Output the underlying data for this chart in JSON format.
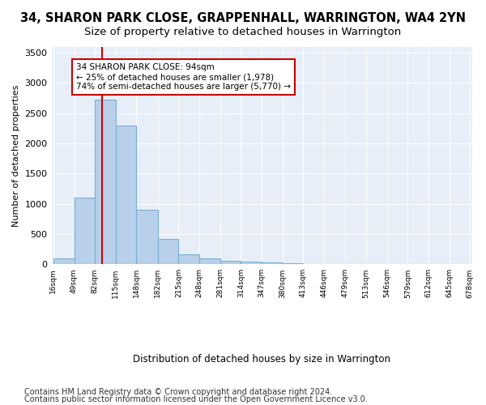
{
  "title_line1": "34, SHARON PARK CLOSE, GRAPPENHALL, WARRINGTON, WA4 2YN",
  "title_line2": "Size of property relative to detached houses in Warrington",
  "xlabel": "Distribution of detached houses by size in Warrington",
  "ylabel": "Number of detached properties",
  "bar_color": "#b8d0ea",
  "bar_edge_color": "#7aafd4",
  "bg_color": "#e8eef8",
  "annotation_line1": "34 SHARON PARK CLOSE: 94sqm",
  "annotation_line2": "← 25% of detached houses are smaller (1,978)",
  "annotation_line3": "74% of semi-detached houses are larger (5,770) →",
  "vline_color": "#cc0000",
  "annotation_box_color": "#ffffff",
  "annotation_box_edge": "#cc0000",
  "bin_edges": [
    16,
    49,
    82,
    115,
    148,
    182,
    215,
    248,
    281,
    314,
    347,
    380,
    413,
    446,
    479,
    513,
    546,
    579,
    612,
    645,
    678
  ],
  "counts": [
    100,
    1100,
    2720,
    2300,
    900,
    420,
    165,
    100,
    60,
    50,
    30,
    20,
    10,
    5,
    2,
    2,
    1,
    1,
    1,
    0
  ],
  "ylim": [
    0,
    3600
  ],
  "yticks": [
    0,
    500,
    1000,
    1500,
    2000,
    2500,
    3000,
    3500
  ],
  "property_size": 94,
  "footnote1": "Contains HM Land Registry data © Crown copyright and database right 2024.",
  "footnote2": "Contains public sector information licensed under the Open Government Licence v3.0.",
  "title_fontsize": 10.5,
  "subtitle_fontsize": 9.5,
  "footnote_fontsize": 7.0
}
